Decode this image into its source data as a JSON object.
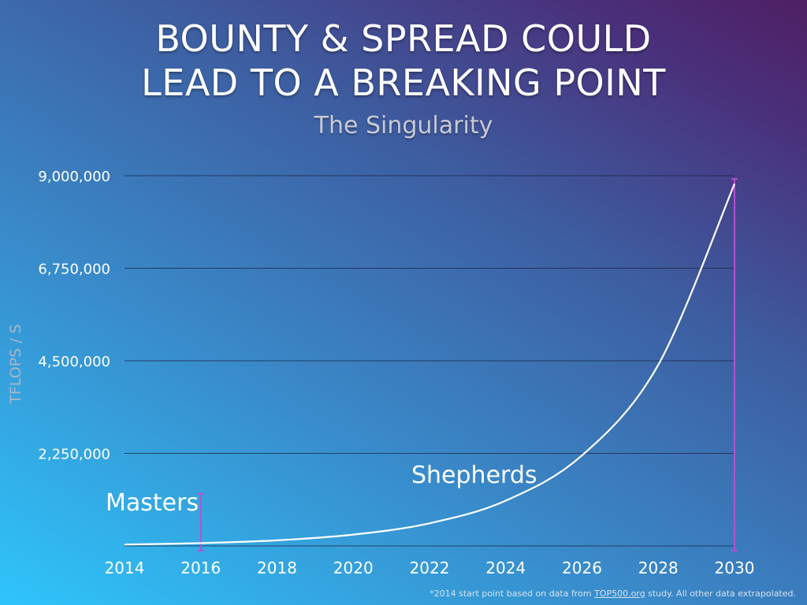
{
  "slide": {
    "title_line1": "BOUNTY & SPREAD COULD",
    "title_line2": "LEAD TO A BREAKING POINT",
    "subtitle": "The Singularity"
  },
  "footnote": {
    "prefix": "*2014 start point based on data from ",
    "link": "TOP500.org",
    "suffix": " study. All other data extrapolated."
  },
  "chart_data": {
    "type": "line",
    "title": "",
    "ylabel": "TFLOPS / S",
    "xlabel": "",
    "x": [
      2014,
      2016,
      2018,
      2020,
      2022,
      2024,
      2026,
      2028,
      2030
    ],
    "xticks": [
      "2014",
      "2016",
      "2018",
      "2020",
      "2022",
      "2024",
      "2026",
      "2028",
      "2030"
    ],
    "yticks": [
      2250000,
      4500000,
      6750000,
      9000000
    ],
    "ytick_labels": [
      "2,250,000",
      "4,500,000",
      "6,750,000",
      "9,000,000"
    ],
    "ylim": [
      0,
      9000000
    ],
    "grid": true,
    "series": [
      {
        "values": [
          34000,
          68000,
          136000,
          275000,
          550000,
          1100000,
          2200000,
          4400000,
          8800000
        ]
      }
    ],
    "annotations": [
      {
        "text": "Masters",
        "x": 2016,
        "range": [
          0,
          1270000
        ]
      },
      {
        "text": "Shepherds",
        "x": 2030,
        "range": [
          0,
          8920000
        ]
      }
    ],
    "colors": {
      "line": "#ffffff",
      "bracket": "#b352d0",
      "grid": "#1a2440"
    }
  }
}
